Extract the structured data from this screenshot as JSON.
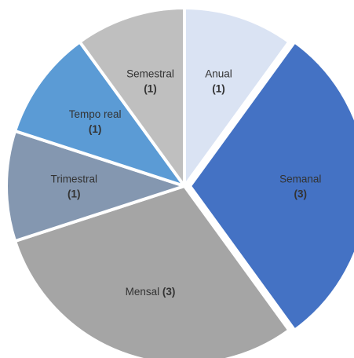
{
  "chart_data": {
    "type": "pie",
    "slices": [
      {
        "label": "Anual",
        "value": 1,
        "value_text": "(1)",
        "color": "#dae3f3",
        "text_color": "#333333",
        "layout": "two-line"
      },
      {
        "label": "Semanal",
        "value": 3,
        "value_text": "(3)",
        "color": "#4472c4",
        "text_color": "#333333",
        "layout": "two-line"
      },
      {
        "label": "Mensal",
        "value": 3,
        "value_text": "(3)",
        "color": "#a5a5a5",
        "text_color": "#333333",
        "layout": "inline"
      },
      {
        "label": "Trimestral",
        "value": 1,
        "value_text": "(1)",
        "color": "#8497b0",
        "text_color": "#333333",
        "layout": "two-line"
      },
      {
        "label": "Tempo real",
        "value": 1,
        "value_text": "(1)",
        "color": "#5b9bd5",
        "text_color": "#333333",
        "layout": "two-line"
      },
      {
        "label": "Semestral",
        "value": 1,
        "value_text": "(1)",
        "color": "#bfbfbf",
        "text_color": "#333333",
        "layout": "two-line"
      }
    ],
    "start_angle": 0,
    "direction": "clockwise",
    "border_color": "#ffffff"
  }
}
